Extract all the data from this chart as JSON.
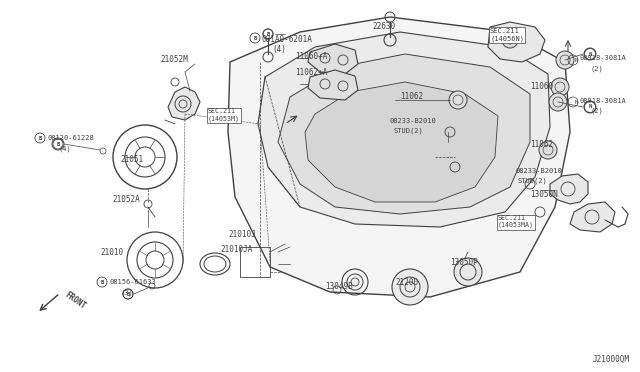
{
  "bg_color": "#ffffff",
  "diagram_color": "#404040",
  "fig_width": 6.4,
  "fig_height": 3.72,
  "dpi": 100,
  "watermark": "J21000QM",
  "xlim": [
    0,
    640
  ],
  "ylim": [
    0,
    372
  ]
}
